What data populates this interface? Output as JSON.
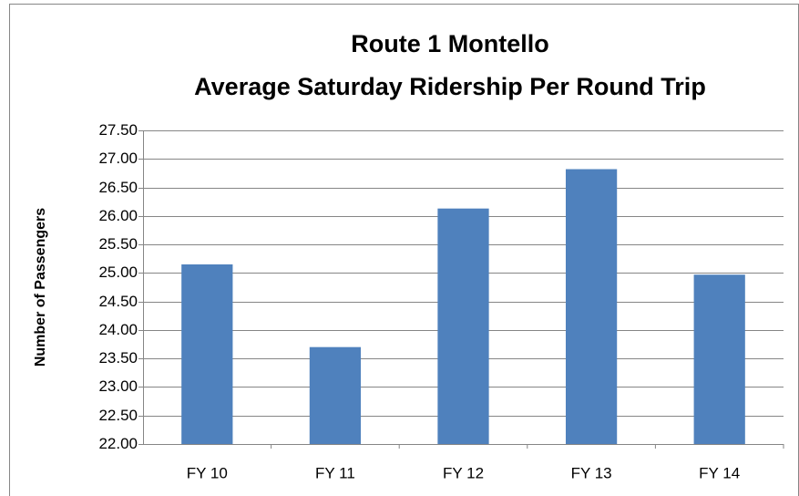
{
  "chart_data": {
    "type": "bar",
    "title": [
      "Route 1 Montello",
      "Average Saturday Ridership Per Round Trip"
    ],
    "y_label": "Number of Passengers",
    "categories": [
      "FY 10",
      "FY 11",
      "FY 12",
      "FY 13",
      "FY 14"
    ],
    "values": [
      25.15,
      23.7,
      26.13,
      26.82,
      24.97
    ],
    "color": "#4f81bd",
    "ylim": [
      22,
      27.5
    ],
    "yticks": [
      {
        "value": 22,
        "label": "22.00"
      },
      {
        "value": 22.5,
        "label": "22.50"
      },
      {
        "value": 23,
        "label": "23.00"
      },
      {
        "value": 23.5,
        "label": "23.50"
      },
      {
        "value": 24,
        "label": "24.00"
      },
      {
        "value": 24.5,
        "label": "24.50"
      },
      {
        "value": 25,
        "label": "25.00"
      },
      {
        "value": 25.5,
        "label": "25.50"
      },
      {
        "value": 26,
        "label": "26.00"
      },
      {
        "value": 26.5,
        "label": "26.50"
      },
      {
        "value": 27,
        "label": "27.00"
      },
      {
        "value": 27.5,
        "label": "27.50"
      }
    ],
    "grid": true
  }
}
